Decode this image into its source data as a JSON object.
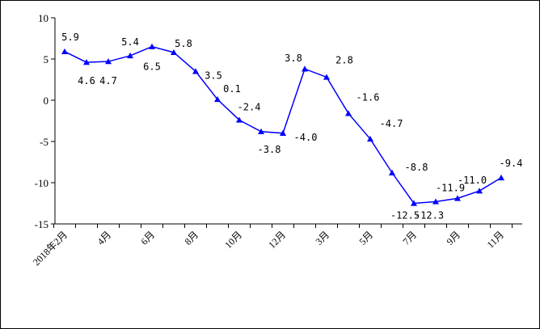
{
  "chart_data": {
    "type": "line",
    "title": "",
    "xlabel": "",
    "ylabel": "",
    "ylim": [
      -15,
      10
    ],
    "yticks": [
      10,
      5,
      0,
      -5,
      -10,
      -15
    ],
    "grid": false,
    "legend": "none",
    "series_color": "#0000ff",
    "marker": "triangle",
    "points": [
      {
        "value": 5.9,
        "label": "5.9",
        "xlabel": "2018年2月"
      },
      {
        "value": 4.6,
        "label": "4.6",
        "xlabel": ""
      },
      {
        "value": 4.7,
        "label": "4.7",
        "xlabel": "4月"
      },
      {
        "value": 5.4,
        "label": "5.4",
        "xlabel": ""
      },
      {
        "value": 6.5,
        "label": "6.5",
        "xlabel": "6月"
      },
      {
        "value": 5.8,
        "label": "5.8",
        "xlabel": ""
      },
      {
        "value": 3.5,
        "label": "3.5",
        "xlabel": "8月"
      },
      {
        "value": 0.1,
        "label": "0.1",
        "xlabel": ""
      },
      {
        "value": -2.4,
        "label": "-2.4",
        "xlabel": "10月"
      },
      {
        "value": -3.8,
        "label": "-3.8",
        "xlabel": ""
      },
      {
        "value": -4.0,
        "label": "-4.0",
        "xlabel": "12月"
      },
      {
        "value": 3.8,
        "label": "3.8",
        "xlabel": ""
      },
      {
        "value": 2.8,
        "label": "2.8",
        "xlabel": "3月"
      },
      {
        "value": -1.6,
        "label": "-1.6",
        "xlabel": ""
      },
      {
        "value": -4.7,
        "label": "-4.7",
        "xlabel": "5月"
      },
      {
        "value": -8.8,
        "label": "-8.8",
        "xlabel": ""
      },
      {
        "value": -12.5,
        "label": "-12.5",
        "xlabel": "7月"
      },
      {
        "value": -12.3,
        "label": "-12.3",
        "xlabel": ""
      },
      {
        "value": -11.9,
        "label": "-11.9",
        "xlabel": "9月"
      },
      {
        "value": -11.0,
        "label": "-11.0",
        "xlabel": ""
      },
      {
        "value": -9.4,
        "label": "-9.4",
        "xlabel": "11月"
      }
    ]
  }
}
